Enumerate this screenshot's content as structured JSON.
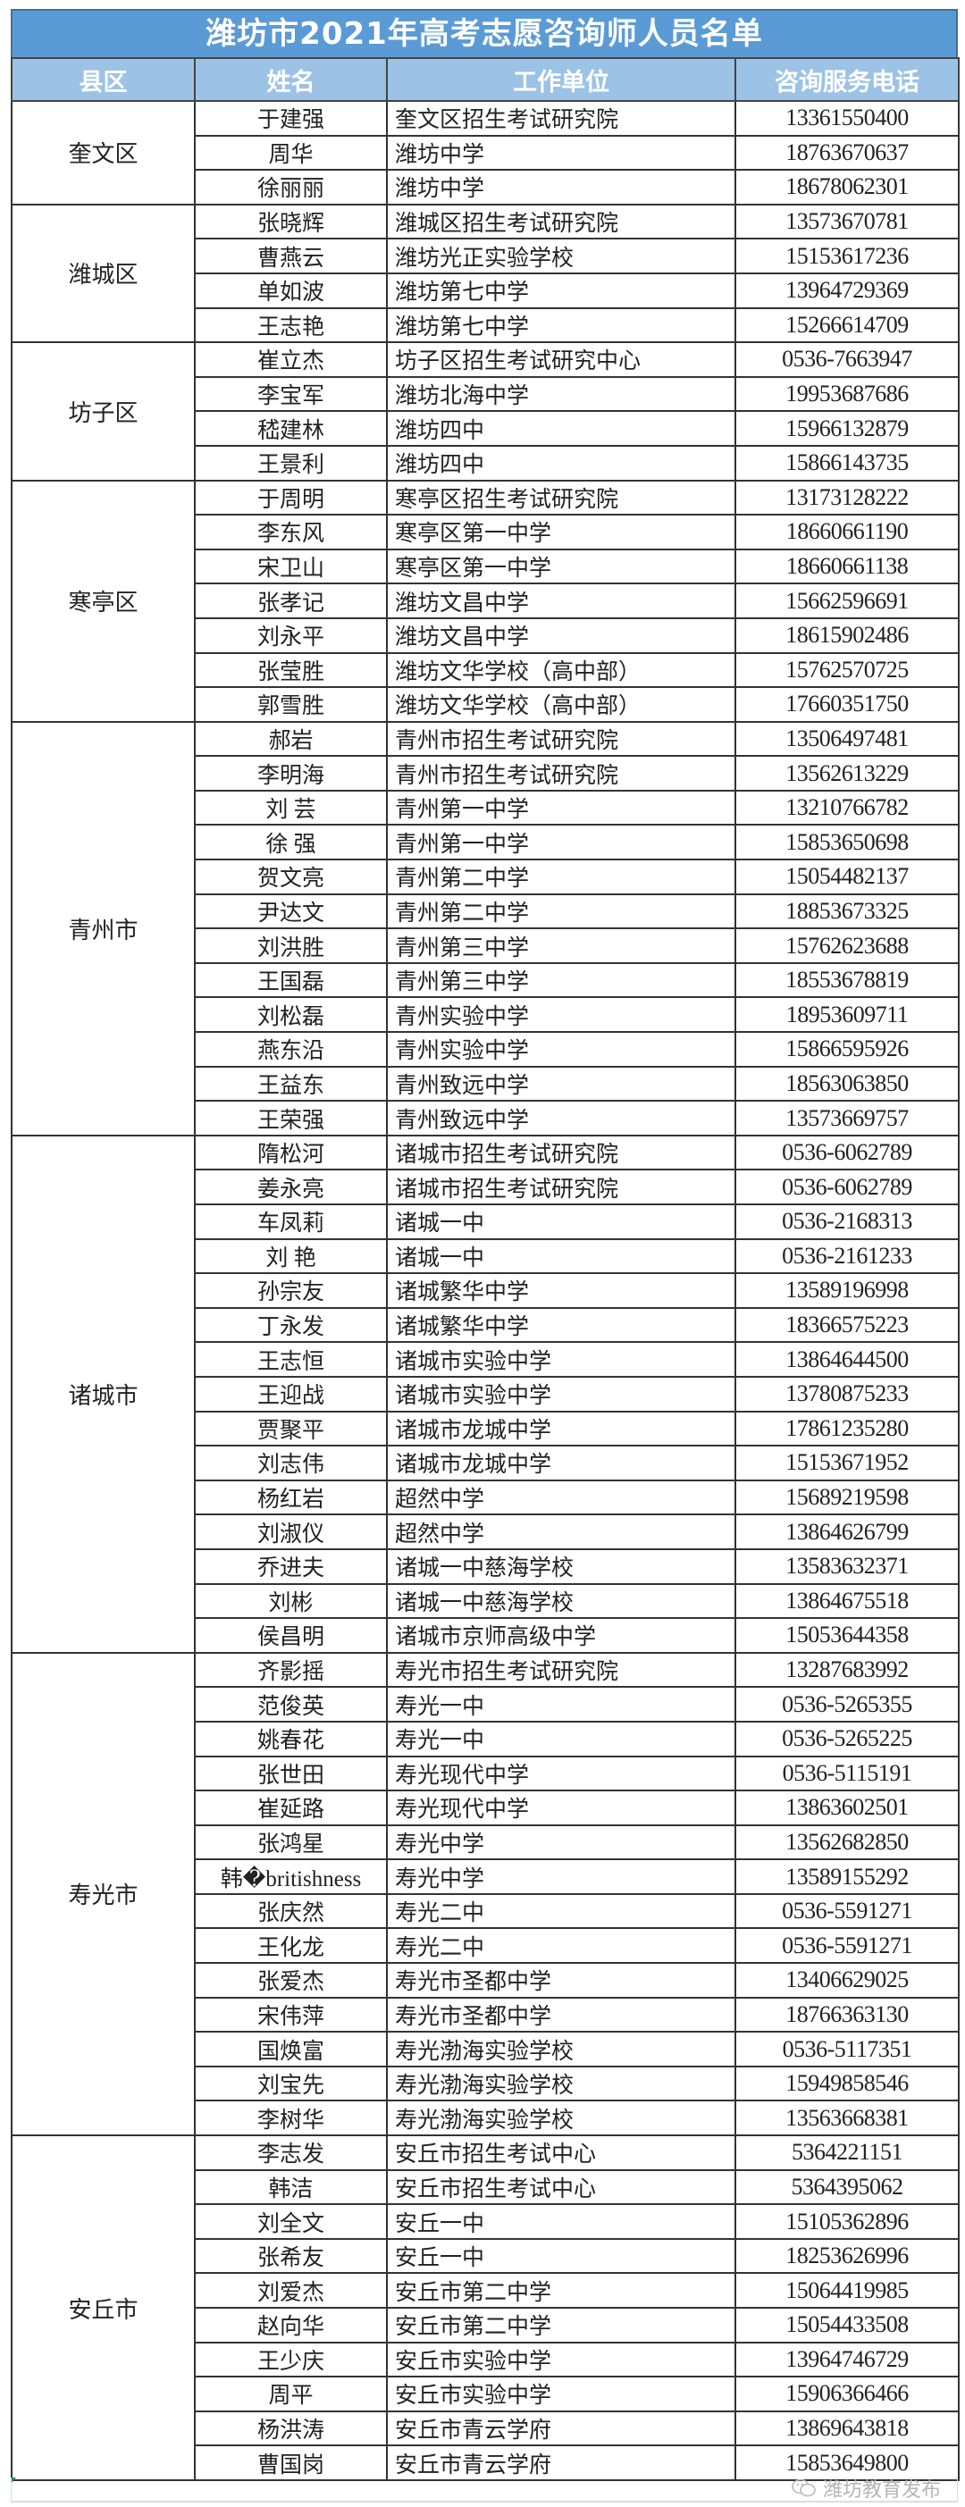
{
  "title": "潍坊市2021年高考志愿咨询师人员名单",
  "headers": [
    "县区",
    "姓名",
    "工作单位",
    "咨询服务电话"
  ],
  "colors": {
    "title_bg": "#5b9bd5",
    "header_bg": "#9cc3e5"
  },
  "regions": [
    {
      "name": "奎文区",
      "rows": [
        {
          "name": "于建强",
          "unit": "奎文区招生考试研究院",
          "phone": "13361550400"
        },
        {
          "name": "周华",
          "unit": "潍坊中学",
          "phone": "18763670637"
        },
        {
          "name": "徐丽丽",
          "unit": "潍坊中学",
          "phone": "18678062301"
        }
      ]
    },
    {
      "name": "潍城区",
      "rows": [
        {
          "name": "张晓辉",
          "unit": "潍城区招生考试研究院",
          "phone": "13573670781"
        },
        {
          "name": "曹燕云",
          "unit": "潍坊光正实验学校",
          "phone": "15153617236"
        },
        {
          "name": "单如波",
          "unit": "潍坊第七中学",
          "phone": "13964729369"
        },
        {
          "name": "王志艳",
          "unit": "潍坊第七中学",
          "phone": "15266614709"
        }
      ]
    },
    {
      "name": "坊子区",
      "rows": [
        {
          "name": "崔立杰",
          "unit": "坊子区招生考试研究中心",
          "phone": "0536-7663947"
        },
        {
          "name": "李宝军",
          "unit": "潍坊北海中学",
          "phone": "19953687686"
        },
        {
          "name": "嵇建林",
          "unit": "潍坊四中",
          "phone": "15966132879"
        },
        {
          "name": "王景利",
          "unit": "潍坊四中",
          "phone": "15866143735"
        }
      ]
    },
    {
      "name": "寒亭区",
      "rows": [
        {
          "name": "于周明",
          "unit": "寒亭区招生考试研究院",
          "phone": "13173128222"
        },
        {
          "name": "李东风",
          "unit": "寒亭区第一中学",
          "phone": "18660661190"
        },
        {
          "name": "宋卫山",
          "unit": "寒亭区第一中学",
          "phone": "18660661138"
        },
        {
          "name": "张孝记",
          "unit": "潍坊文昌中学",
          "phone": "15662596691"
        },
        {
          "name": "刘永平",
          "unit": "潍坊文昌中学",
          "phone": "18615902486"
        },
        {
          "name": "张莹胜",
          "unit": "潍坊文华学校（高中部）",
          "phone": "15762570725"
        },
        {
          "name": "郭雪胜",
          "unit": "潍坊文华学校（高中部）",
          "phone": "17660351750"
        }
      ]
    },
    {
      "name": "青州市",
      "rows": [
        {
          "name": "郝岩",
          "unit": "青州市招生考试研究院",
          "phone": "13506497481"
        },
        {
          "name": "李明海",
          "unit": "青州市招生考试研究院",
          "phone": "13562613229"
        },
        {
          "name": "刘 芸",
          "unit": "青州第一中学",
          "phone": "13210766782"
        },
        {
          "name": "徐 强",
          "unit": "青州第一中学",
          "phone": "15853650698"
        },
        {
          "name": "贺文亮",
          "unit": "青州第二中学",
          "phone": "15054482137"
        },
        {
          "name": "尹达文",
          "unit": "青州第二中学",
          "phone": "18853673325"
        },
        {
          "name": "刘洪胜",
          "unit": "青州第三中学",
          "phone": "15762623688"
        },
        {
          "name": "王国磊",
          "unit": "青州第三中学",
          "phone": "18553678819"
        },
        {
          "name": "刘松磊",
          "unit": "青州实验中学",
          "phone": "18953609711"
        },
        {
          "name": "燕东沿",
          "unit": "青州实验中学",
          "phone": "15866595926"
        },
        {
          "name": "王益东",
          "unit": "青州致远中学",
          "phone": "18563063850"
        },
        {
          "name": "王荣强",
          "unit": "青州致远中学",
          "phone": "13573669757"
        }
      ]
    },
    {
      "name": "诸城市",
      "rows": [
        {
          "name": "隋松河",
          "unit": "诸城市招生考试研究院",
          "phone": "0536-6062789"
        },
        {
          "name": "姜永亮",
          "unit": "诸城市招生考试研究院",
          "phone": "0536-6062789"
        },
        {
          "name": "车凤莉",
          "unit": "诸城一中",
          "phone": "0536-2168313"
        },
        {
          "name": "刘 艳",
          "unit": "诸城一中",
          "phone": "0536-2161233"
        },
        {
          "name": "孙宗友",
          "unit": "诸城繁华中学",
          "phone": "13589196998"
        },
        {
          "name": "丁永发",
          "unit": "诸城繁华中学",
          "phone": "18366575223"
        },
        {
          "name": "王志恒",
          "unit": "诸城市实验中学",
          "phone": "13864644500"
        },
        {
          "name": "王迎战",
          "unit": "诸城市实验中学",
          "phone": "13780875233"
        },
        {
          "name": "贾聚平",
          "unit": "诸城市龙城中学",
          "phone": "17861235280"
        },
        {
          "name": "刘志伟",
          "unit": "诸城市龙城中学",
          "phone": "15153671952"
        },
        {
          "name": "杨红岩",
          "unit": "超然中学",
          "phone": "15689219598"
        },
        {
          "name": "刘淑仪",
          "unit": "超然中学",
          "phone": "13864626799"
        },
        {
          "name": "乔进夫",
          "unit": "诸城一中慈海学校",
          "phone": "13583632371"
        },
        {
          "name": "刘彬",
          "unit": "诸城一中慈海学校",
          "phone": "13864675518"
        },
        {
          "name": "侯昌明",
          "unit": "诸城市京师高级中学",
          "phone": "15053644358"
        }
      ]
    },
    {
      "name": "寿光市",
      "rows": [
        {
          "name": "齐影摇",
          "unit": "寿光市招生考试研究院",
          "phone": "13287683992"
        },
        {
          "name": "范俊英",
          "unit": "寿光一中",
          "phone": "0536-5265355"
        },
        {
          "name": "姚春花",
          "unit": "寿光一中",
          "phone": "0536-5265225"
        },
        {
          "name": "张世田",
          "unit": "寿光现代中学",
          "phone": "0536-5115191"
        },
        {
          "name": "崔延路",
          "unit": "寿光现代中学",
          "phone": "13863602501"
        },
        {
          "name": "张鸿星",
          "unit": "寿光中学",
          "phone": "13562682850"
        },
        {
          "name": "韩�britishness",
          "unit": "寿光中学",
          "phone": "13589155292"
        },
        {
          "name": "张庆然",
          "unit": "寿光二中",
          "phone": "0536-5591271"
        },
        {
          "name": "王化龙",
          "unit": "寿光二中",
          "phone": "0536-5591271"
        },
        {
          "name": "张爱杰",
          "unit": "寿光市圣都中学",
          "phone": "13406629025"
        },
        {
          "name": "宋伟萍",
          "unit": "寿光市圣都中学",
          "phone": "18766363130"
        },
        {
          "name": "国焕富",
          "unit": "寿光渤海实验学校",
          "phone": "0536-5117351"
        },
        {
          "name": "刘宝先",
          "unit": "寿光渤海实验学校",
          "phone": "15949858546"
        },
        {
          "name": "李树华",
          "unit": "寿光渤海实验学校",
          "phone": "13563668381"
        }
      ]
    },
    {
      "name": "安丘市",
      "rows": [
        {
          "name": "李志发",
          "unit": "安丘市招生考试中心",
          "phone": "5364221151"
        },
        {
          "name": "韩洁",
          "unit": "安丘市招生考试中心",
          "phone": "5364395062"
        },
        {
          "name": "刘全文",
          "unit": "安丘一中",
          "phone": "15105362896"
        },
        {
          "name": "张希友",
          "unit": "安丘一中",
          "phone": "18253626996"
        },
        {
          "name": "刘爱杰",
          "unit": "安丘市第二中学",
          "phone": "15064419985"
        },
        {
          "name": "赵向华",
          "unit": "安丘市第二中学",
          "phone": "15054433508"
        },
        {
          "name": "王少庆",
          "unit": "安丘市实验中学",
          "phone": "13964746729"
        },
        {
          "name": "周平",
          "unit": "安丘市实验中学",
          "phone": "15906366466"
        },
        {
          "name": "杨洪涛",
          "unit": "安丘市青云学府",
          "phone": "13869643818"
        },
        {
          "name": "曹国岗",
          "unit": "安丘市青云学府",
          "phone": "15853649800"
        }
      ]
    }
  ],
  "watermark": "潍坊教育发布",
  "watermark_icon": "wechat-icon"
}
